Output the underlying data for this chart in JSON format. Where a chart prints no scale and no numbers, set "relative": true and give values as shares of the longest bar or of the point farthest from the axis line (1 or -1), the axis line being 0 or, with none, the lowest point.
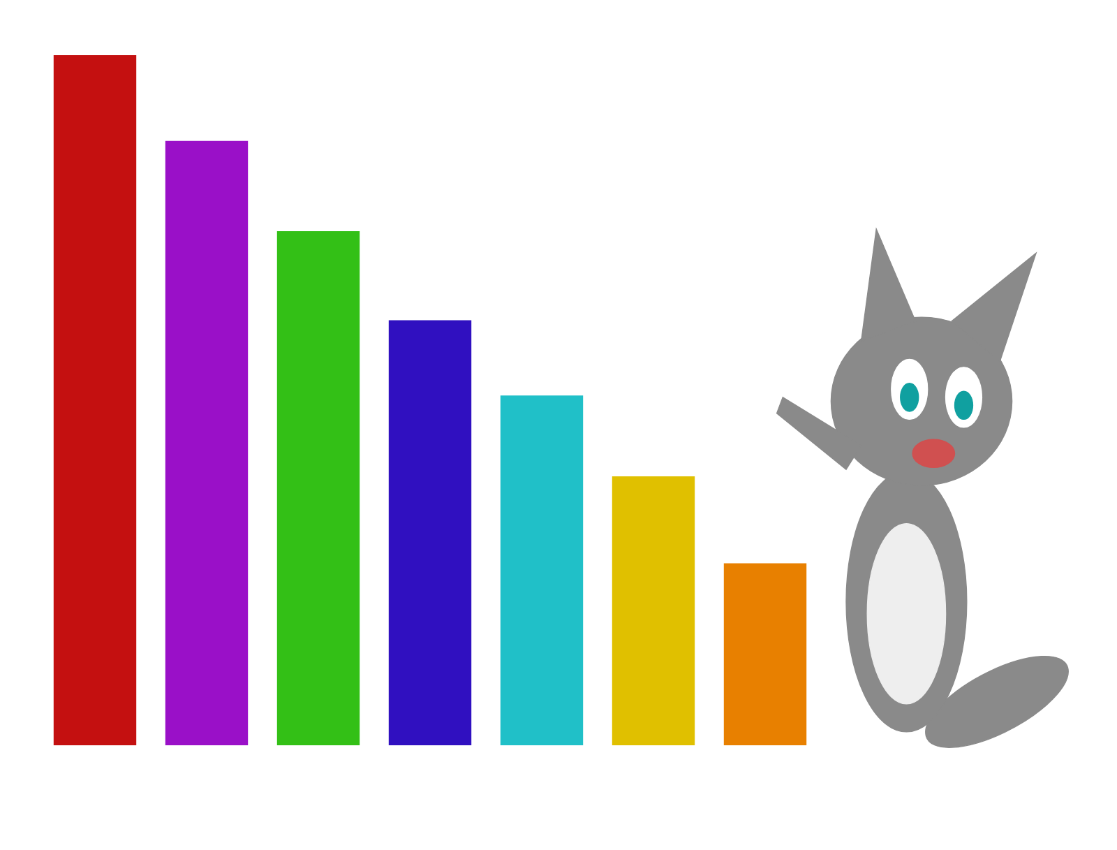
{
  "chart_data": {
    "type": "bar",
    "relative": true,
    "categories": [
      null,
      null,
      null,
      null,
      null,
      null,
      null
    ],
    "values": [
      1,
      0.876,
      0.745,
      0.616,
      0.507,
      0.39,
      0.264
    ],
    "colors": [
      "#c41010",
      "#9a10c8",
      "#33c016",
      "#3010c0",
      "#20c0c8",
      "#e0c000",
      "#e88000"
    ]
  }
}
